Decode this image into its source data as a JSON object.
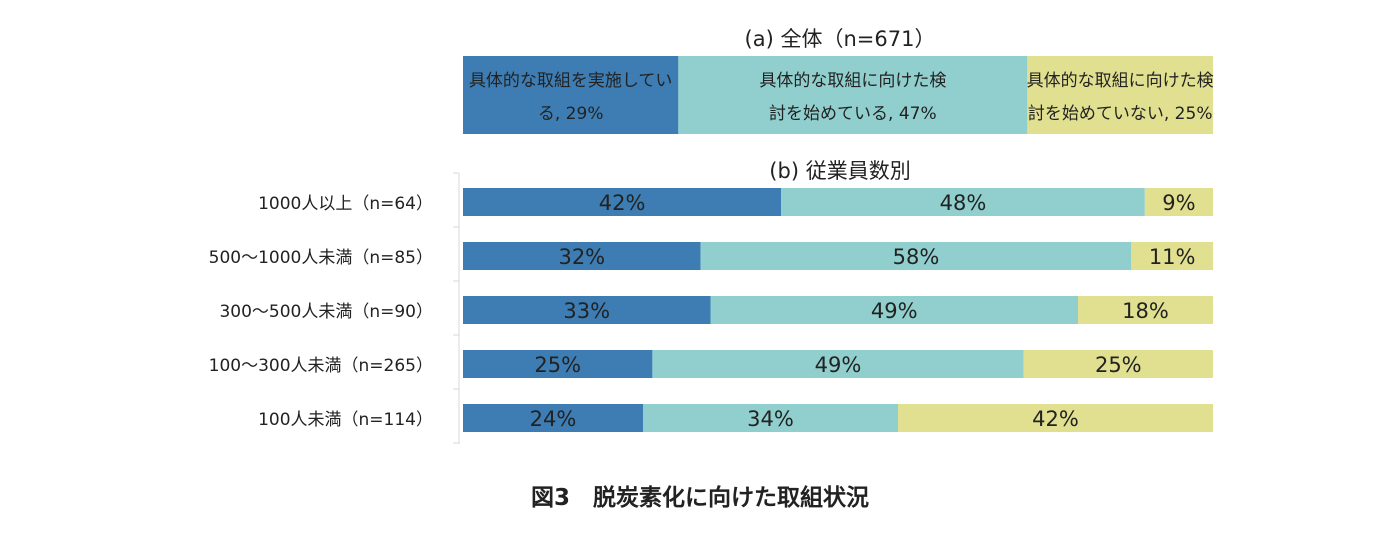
{
  "chart_data": [
    {
      "type": "stacked-bar-horizontal",
      "title": "(a) 全体（n=671）",
      "xlim": [
        0,
        100
      ],
      "series": [
        {
          "name": "具体的な取組を実施している",
          "color": "#3d7db3",
          "values": [
            29
          ],
          "labels": [
            "具体的な取組を実施してい|る, 29%"
          ]
        },
        {
          "name": "具体的な取組に向けた検討を始めている",
          "color": "#90cfcd",
          "values": [
            47
          ],
          "labels": [
            "具体的な取組に向けた検|討を始めている, 47%"
          ]
        },
        {
          "name": "具体的な取組に向けた検討を始めていない",
          "color": "#e0e090",
          "values": [
            25
          ],
          "labels": [
            "具体的な取組に向けた検|討を始めていない, 25%"
          ]
        }
      ]
    },
    {
      "type": "stacked-bar-horizontal",
      "title": "(b) 従業員数別",
      "xlim": [
        0,
        100
      ],
      "categories": [
        "1000人以上（n=64）",
        "500～1000人未満（n=85）",
        "300～500人未満（n=90）",
        "100～300人未満（n=265）",
        "100人未満（n=114）"
      ],
      "series": [
        {
          "name": "具体的な取組を実施している",
          "color": "#3d7db3",
          "values": [
            42,
            32,
            33,
            25,
            24
          ],
          "labels": [
            "42%",
            "32%",
            "33%",
            "25%",
            "24%"
          ]
        },
        {
          "name": "具体的な取組に向けた検討を始めている",
          "color": "#90cfcd",
          "values": [
            48,
            58,
            49,
            49,
            34
          ],
          "labels": [
            "48%",
            "58%",
            "49%",
            "49%",
            "34%"
          ]
        },
        {
          "name": "具体的な取組に向けた検討を始めていない",
          "color": "#e0e090",
          "values": [
            9,
            11,
            18,
            25,
            42
          ],
          "labels": [
            "9%",
            "11%",
            "18%",
            "25%",
            "42%"
          ]
        }
      ]
    }
  ],
  "figure_caption": "図3　脱炭素化に向けた取組状況"
}
